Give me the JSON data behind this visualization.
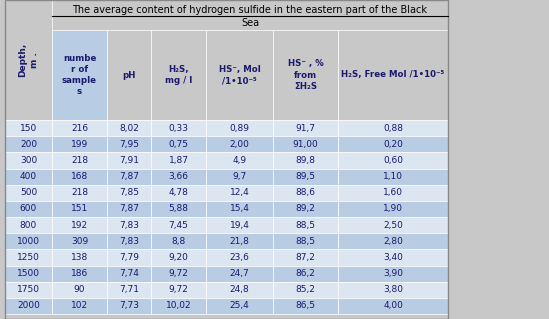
{
  "title_line1": "The average content of hydrogen sulfide in the eastern part of the Black",
  "title_line2": "Sea",
  "col_headers_display": [
    "number\nof\nsamples",
    "pH",
    "H₂S,\nmg / l",
    "HS⁻, Mol\n/1•10⁻⁵",
    "HS⁻ , %\nfrom\nΣH₂S",
    "H₂S, Free Mol /1•10⁻⁵"
  ],
  "rows": [
    [
      "150",
      "216",
      "8,02",
      "0,33",
      "0,89",
      "91,7",
      "0,88"
    ],
    [
      "200",
      "199",
      "7,95",
      "0,75",
      "2,00",
      "91,00",
      "0,20"
    ],
    [
      "300",
      "218",
      "7,91",
      "1,87",
      "4,9",
      "89,8",
      "0,60"
    ],
    [
      "400",
      "168",
      "7,87",
      "3,66",
      "9,7",
      "89,5",
      "1,10"
    ],
    [
      "500",
      "218",
      "7,85",
      "4,78",
      "12,4",
      "88,6",
      "1,60"
    ],
    [
      "600",
      "151",
      "7,87",
      "5,88",
      "15,4",
      "89,2",
      "1,90"
    ],
    [
      "800",
      "192",
      "7,83",
      "7,45",
      "19,4",
      "88,5",
      "2,50"
    ],
    [
      "1000",
      "309",
      "7,83",
      "8,8",
      "21,8",
      "88,5",
      "2,80"
    ],
    [
      "1250",
      "138",
      "7,79",
      "9,20",
      "23,6",
      "87,2",
      "3,40"
    ],
    [
      "1500",
      "186",
      "7,74",
      "9,72",
      "24,7",
      "86,2",
      "3,90"
    ],
    [
      "1750",
      "90",
      "7,71",
      "9,72",
      "24,8",
      "85,2",
      "3,80"
    ],
    [
      "2000",
      "102",
      "7,73",
      "10,02",
      "25,4",
      "86,5",
      "4,00"
    ]
  ],
  "header_bg": "#c8c8c8",
  "header_bg_highlight": "#b8cce4",
  "row_bg_light": "#dce6f1",
  "row_bg_dark": "#b8cce4",
  "text_color": "#1a1a6e",
  "title_color": "#000000",
  "figsize": [
    5.49,
    3.19
  ],
  "dpi": 100
}
